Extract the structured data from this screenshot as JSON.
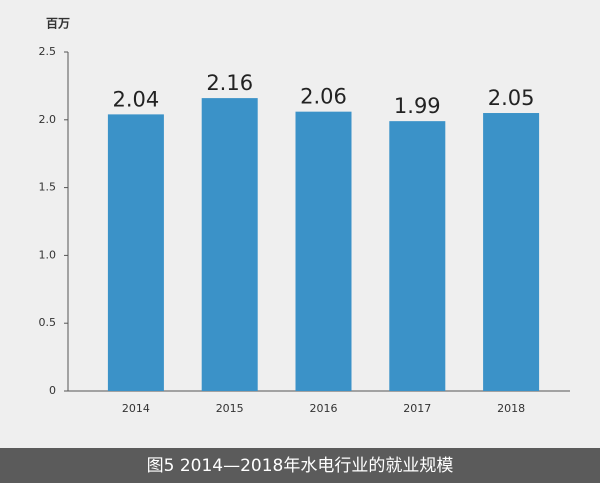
{
  "chart_data": {
    "type": "bar",
    "y_label": "百万",
    "caption": "图5 2014—2018年水电行业的就业规模",
    "categories": [
      "2014",
      "2015",
      "2016",
      "2017",
      "2018"
    ],
    "values": [
      2.04,
      2.16,
      2.06,
      1.99,
      2.05
    ],
    "color": "#3b92c8",
    "ylim": [
      0,
      2.5
    ],
    "yticks": [
      0,
      0.5,
      {
        "value": 1,
        "label": "1.0"
      },
      1.5,
      {
        "value": 2,
        "label": "2.0"
      },
      2.5
    ],
    "grid": false
  }
}
